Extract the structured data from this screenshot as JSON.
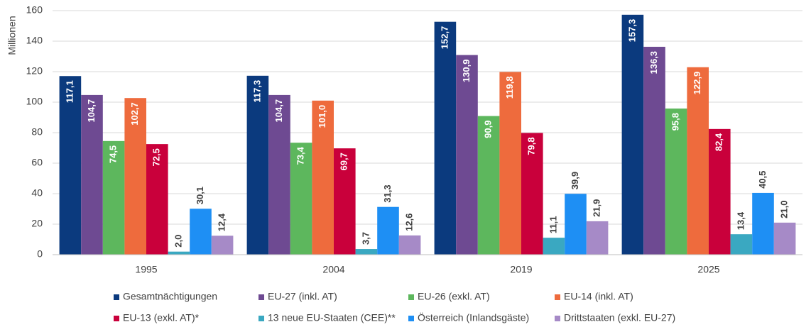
{
  "chart_data": {
    "type": "bar",
    "y_label": "Millionen",
    "categories": [
      "1995",
      "2004",
      "2019",
      "2025"
    ],
    "ylim": [
      0,
      160
    ],
    "yticks": [
      0,
      20,
      40,
      60,
      80,
      100,
      120,
      140,
      160
    ],
    "grid": true,
    "series": [
      {
        "name": "Gesamtnächtigungen",
        "color": "#0b3a7e",
        "values": [
          117.1,
          117.3,
          152.7,
          157.3
        ],
        "value_labels": [
          "117,1",
          "117,3",
          "152,7",
          "157,3"
        ]
      },
      {
        "name": "EU-27 (inkl. AT)",
        "color": "#6e4a92",
        "values": [
          104.7,
          104.7,
          130.9,
          136.3
        ],
        "value_labels": [
          "104,7",
          "104,7",
          "130,9",
          "136,3"
        ]
      },
      {
        "name": "EU-26 (exkl. AT)",
        "color": "#5db75d",
        "values": [
          74.5,
          73.4,
          90.9,
          95.8
        ],
        "value_labels": [
          "74,5",
          "73,4",
          "90,9",
          "95,8"
        ]
      },
      {
        "name": "EU-14 (inkl. AT)",
        "color": "#ee6b3d",
        "values": [
          102.7,
          101.0,
          119.8,
          122.9
        ],
        "value_labels": [
          "102,7",
          "101,0",
          "119,8",
          "122,9"
        ]
      },
      {
        "name": "EU-13 (exkl. AT)*",
        "color": "#c9003b",
        "values": [
          72.5,
          69.7,
          79.8,
          82.4
        ],
        "value_labels": [
          "72,5",
          "69,7",
          "79,8",
          "82,4"
        ]
      },
      {
        "name": "13 neue EU-Staaten (CEE)**",
        "color": "#3aa8c1",
        "values": [
          2.0,
          3.7,
          11.1,
          13.4
        ],
        "value_labels": [
          "2,0",
          "3,7",
          "11,1",
          "13,4"
        ]
      },
      {
        "name": "Österreich (Inlandsgäste)",
        "color": "#1e8ff4",
        "values": [
          30.1,
          31.3,
          39.9,
          40.5
        ],
        "value_labels": [
          "30,1",
          "31,3",
          "39,9",
          "40,5"
        ]
      },
      {
        "name": "Drittstaaten (exkl. EU-27)",
        "color": "#a68ac7",
        "values": [
          12.4,
          12.6,
          21.9,
          21.0
        ],
        "value_labels": [
          "12,4",
          "12,6",
          "21,9",
          "21,0"
        ]
      }
    ]
  }
}
